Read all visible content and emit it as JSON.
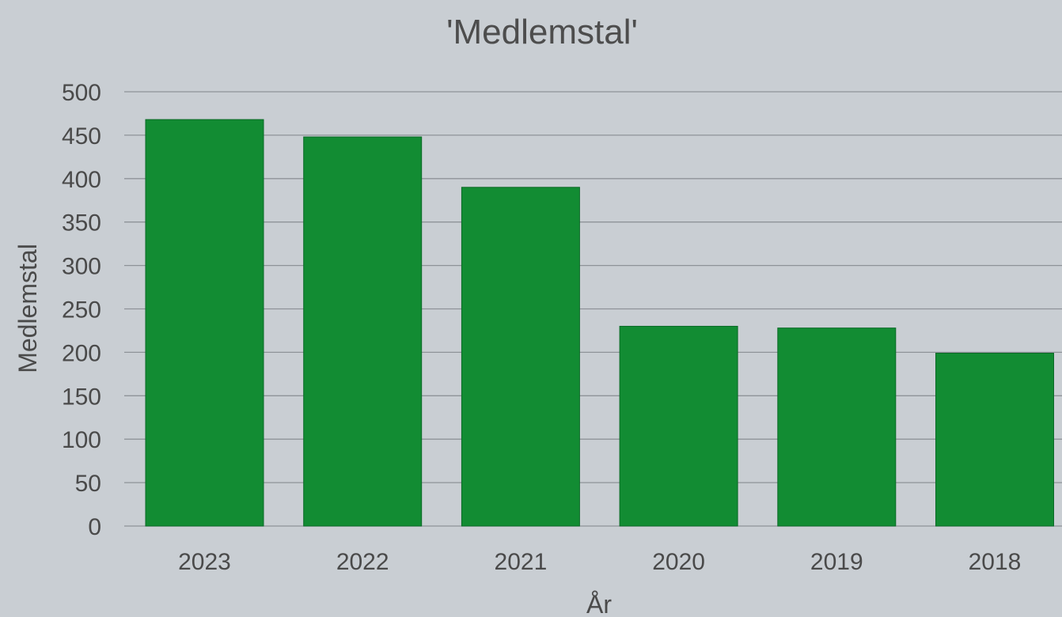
{
  "chart_data": {
    "type": "bar",
    "title": "'Medlemstal'",
    "xlabel": "År",
    "ylabel": "Medlemstal",
    "categories": [
      "2023",
      "2022",
      "2021",
      "2020",
      "2019",
      "2018"
    ],
    "values": [
      468,
      448,
      390,
      230,
      228,
      199
    ],
    "ylim": [
      0,
      500
    ],
    "yticks": [
      "0",
      "50",
      "100",
      "150",
      "200",
      "250",
      "300",
      "350",
      "400",
      "450",
      "500"
    ],
    "grid": true,
    "legend": "none",
    "colors": {
      "bar": "#128c33",
      "background": "#c9ced3"
    }
  }
}
